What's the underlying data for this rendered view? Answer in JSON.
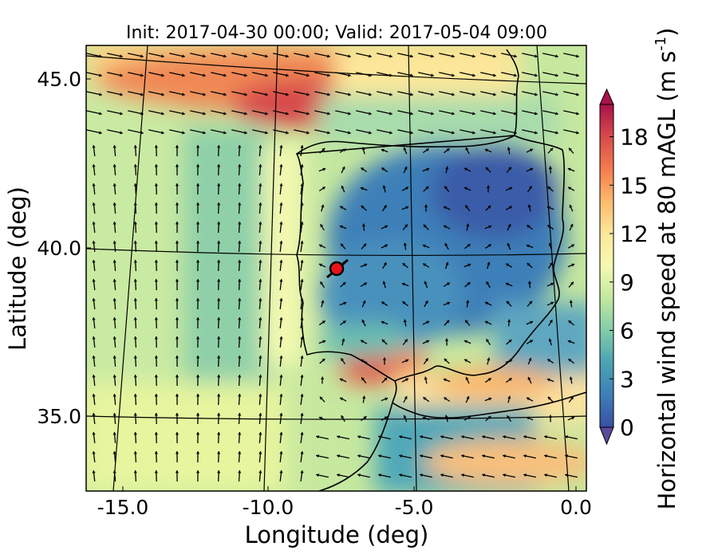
{
  "chart_data": {
    "type": "heatmap",
    "title": "Init: 2017-04-30 00:00; Valid: 2017-05-04 09:00",
    "xlabel": "Longitude (deg)",
    "ylabel": "Latitude (deg)",
    "xlim": [
      -16.0,
      0.3
    ],
    "ylim": [
      32.7,
      46.0
    ],
    "xticks": [
      -15.0,
      -10.0,
      -5.0,
      0.0
    ],
    "xtick_labels": [
      "-15.0",
      "-10.0",
      "-5.0",
      "0.0"
    ],
    "yticks": [
      35.0,
      40.0,
      45.0
    ],
    "ytick_labels": [
      "35.0",
      "40.0",
      "45.0"
    ],
    "grid": true,
    "colorbar": {
      "label": "Horizontal wind speed at 80 mAGL (m s",
      "label_superscript": "-1",
      "label_close": ")",
      "range": [
        0,
        20
      ],
      "ticks": [
        0,
        3,
        6,
        9,
        12,
        15,
        18
      ],
      "tick_labels": [
        "0",
        "3",
        "6",
        "9",
        "12",
        "15",
        "18"
      ],
      "extend": "both",
      "colormap": "Spectral_r"
    },
    "marker": {
      "lon": -7.7,
      "lat": 39.35,
      "color": "#e8141c"
    },
    "wind_regions": [
      {
        "lon": [
          -15.5,
          -8
        ],
        "lat": [
          44.0,
          46.0
        ],
        "speed": 15
      },
      {
        "lon": [
          -9,
          -6
        ],
        "lat": [
          43.3,
          44.5
        ],
        "speed": 17
      },
      {
        "lon": [
          -14.5,
          -10.5
        ],
        "lat": [
          36.0,
          39.5
        ],
        "speed": 5
      },
      {
        "lon": [
          -9,
          -7
        ],
        "lat": [
          37,
          42
        ],
        "speed": 10
      },
      {
        "lon": [
          -6,
          -1
        ],
        "lat": [
          38,
          42.5
        ],
        "speed": 2
      },
      {
        "lon": [
          -6.5,
          -5.3
        ],
        "lat": [
          35.7,
          36.6
        ],
        "speed": 15
      },
      {
        "lon": [
          -5,
          -1
        ],
        "lat": [
          34.5,
          36.5
        ],
        "speed": 5
      },
      {
        "lon": [
          -5,
          0
        ],
        "lat": [
          32.7,
          34
        ],
        "speed": 12
      }
    ]
  }
}
